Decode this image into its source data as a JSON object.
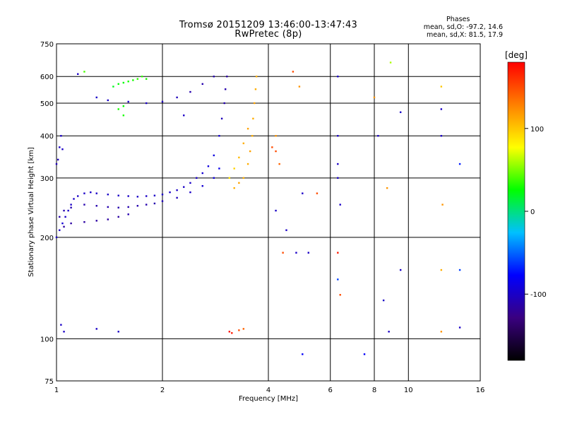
{
  "header": {
    "title_line1": "Tromsø 20151209 13:46:00-13:47:43",
    "title_line2": "RwPretec (8p)"
  },
  "stats": {
    "heading": "Phases",
    "line_o": "mean, sd,O: -97.2, 14.6",
    "line_x": "mean, sd,X:  81.5, 17.9"
  },
  "chart_data": {
    "type": "scatter",
    "xlabel": "Frequency [MHz]",
    "ylabel": "Stationary phase Virtual Height [km]",
    "x_scale": "log",
    "y_scale": "log",
    "xlim": [
      1,
      16
    ],
    "ylim": [
      75,
      750
    ],
    "x_ticks": [
      1,
      2,
      4,
      6,
      8,
      10,
      16
    ],
    "y_ticks": [
      75,
      100,
      200,
      300,
      400,
      500,
      600,
      750
    ],
    "grid": true,
    "colorbar": {
      "label": "[deg]",
      "range": [
        -180,
        180
      ],
      "ticks": [
        100,
        0,
        -100
      ],
      "colors": [
        "#000000",
        "#3a0080",
        "#0000ff",
        "#00c0ff",
        "#00ff00",
        "#ffff00",
        "#ff8000",
        "#ff0000"
      ]
    },
    "points": [
      [
        1.0,
        200,
        -100
      ],
      [
        1.02,
        210,
        -100
      ],
      [
        1.04,
        220,
        -95
      ],
      [
        1.06,
        230,
        -100
      ],
      [
        1.08,
        240,
        -100
      ],
      [
        1.1,
        250,
        -100
      ],
      [
        1.12,
        260,
        -100
      ],
      [
        1.15,
        265,
        -100
      ],
      [
        1.2,
        270,
        -100
      ],
      [
        1.25,
        272,
        -100
      ],
      [
        1.3,
        270,
        -100
      ],
      [
        1.4,
        268,
        -100
      ],
      [
        1.5,
        266,
        -100
      ],
      [
        1.6,
        265,
        -100
      ],
      [
        1.7,
        264,
        -100
      ],
      [
        1.8,
        265,
        -100
      ],
      [
        1.9,
        266,
        -100
      ],
      [
        2.0,
        268,
        -100
      ],
      [
        2.1,
        272,
        -100
      ],
      [
        2.2,
        276,
        -100
      ],
      [
        2.3,
        282,
        -100
      ],
      [
        2.4,
        290,
        -100
      ],
      [
        2.5,
        300,
        -100
      ],
      [
        2.6,
        310,
        -95
      ],
      [
        2.7,
        325,
        -90
      ],
      [
        2.8,
        350,
        -90
      ],
      [
        2.9,
        400,
        -95
      ],
      [
        2.95,
        450,
        -105
      ],
      [
        3.0,
        500,
        -110
      ],
      [
        3.02,
        550,
        -110
      ],
      [
        3.05,
        600,
        -115
      ],
      [
        1.02,
        230,
        -110
      ],
      [
        1.05,
        240,
        -110
      ],
      [
        1.1,
        245,
        -110
      ],
      [
        1.2,
        250,
        -110
      ],
      [
        1.3,
        248,
        -110
      ],
      [
        1.4,
        246,
        -110
      ],
      [
        1.5,
        245,
        -110
      ],
      [
        1.6,
        246,
        -110
      ],
      [
        1.7,
        248,
        -110
      ],
      [
        1.8,
        250,
        -110
      ],
      [
        1.9,
        252,
        -110
      ],
      [
        2.0,
        256,
        -105
      ],
      [
        2.2,
        262,
        -105
      ],
      [
        2.4,
        272,
        -100
      ],
      [
        2.6,
        284,
        -95
      ],
      [
        2.8,
        300,
        -90
      ],
      [
        2.9,
        320,
        -85
      ],
      [
        1.05,
        215,
        -115
      ],
      [
        1.1,
        220,
        -115
      ],
      [
        1.2,
        222,
        -115
      ],
      [
        1.3,
        224,
        -115
      ],
      [
        1.4,
        226,
        -115
      ],
      [
        1.5,
        230,
        -115
      ],
      [
        1.6,
        234,
        -110
      ],
      [
        1.0,
        330,
        -105
      ],
      [
        1.01,
        340,
        -105
      ],
      [
        1.02,
        370,
        -100
      ],
      [
        1.03,
        400,
        -100
      ],
      [
        1.04,
        365,
        -100
      ],
      [
        1.15,
        610,
        -100
      ],
      [
        1.3,
        520,
        -100
      ],
      [
        1.4,
        510,
        -100
      ],
      [
        1.6,
        505,
        -100
      ],
      [
        1.8,
        500,
        -100
      ],
      [
        2.0,
        505,
        -105
      ],
      [
        2.2,
        520,
        -105
      ],
      [
        2.4,
        540,
        -110
      ],
      [
        2.6,
        570,
        -110
      ],
      [
        2.8,
        600,
        -110
      ],
      [
        1.45,
        560,
        20
      ],
      [
        1.5,
        570,
        25
      ],
      [
        1.55,
        575,
        25
      ],
      [
        1.6,
        580,
        30
      ],
      [
        1.65,
        585,
        30
      ],
      [
        1.7,
        590,
        35
      ],
      [
        1.75,
        600,
        35
      ],
      [
        1.8,
        590,
        30
      ],
      [
        1.5,
        480,
        30
      ],
      [
        1.55,
        490,
        25
      ],
      [
        3.2,
        280,
        110
      ],
      [
        3.3,
        290,
        115
      ],
      [
        3.4,
        300,
        110
      ],
      [
        3.5,
        330,
        110
      ],
      [
        3.55,
        360,
        115
      ],
      [
        3.6,
        400,
        110
      ],
      [
        3.62,
        450,
        110
      ],
      [
        3.65,
        500,
        115
      ],
      [
        3.68,
        550,
        110
      ],
      [
        3.7,
        600,
        110
      ],
      [
        3.1,
        300,
        90
      ],
      [
        3.2,
        320,
        95
      ],
      [
        3.3,
        345,
        105
      ],
      [
        3.4,
        380,
        110
      ],
      [
        3.5,
        420,
        115
      ],
      [
        4.1,
        370,
        150
      ],
      [
        4.2,
        360,
        150
      ],
      [
        4.3,
        330,
        140
      ],
      [
        4.2,
        400,
        120
      ],
      [
        3.1,
        105,
        175
      ],
      [
        3.15,
        104,
        170
      ],
      [
        3.3,
        106,
        150
      ],
      [
        3.4,
        107,
        140
      ],
      [
        1.03,
        110,
        -100
      ],
      [
        1.05,
        105,
        -100
      ],
      [
        1.3,
        107,
        -100
      ],
      [
        1.5,
        105,
        -100
      ],
      [
        4.4,
        180,
        150
      ],
      [
        4.5,
        210,
        -100
      ],
      [
        4.8,
        180,
        -100
      ],
      [
        5.0,
        90,
        -80
      ],
      [
        5.2,
        180,
        -100
      ],
      [
        5.0,
        270,
        -100
      ],
      [
        6.3,
        600,
        -100
      ],
      [
        6.3,
        400,
        -100
      ],
      [
        6.3,
        330,
        -100
      ],
      [
        6.3,
        300,
        -100
      ],
      [
        6.4,
        250,
        -100
      ],
      [
        6.3,
        180,
        170
      ],
      [
        6.3,
        150,
        -60
      ],
      [
        6.4,
        135,
        150
      ],
      [
        7.5,
        90,
        -80
      ],
      [
        8.0,
        520,
        120
      ],
      [
        8.2,
        400,
        -100
      ],
      [
        8.5,
        130,
        -100
      ],
      [
        8.7,
        280,
        120
      ],
      [
        8.8,
        105,
        -100
      ],
      [
        8.9,
        660,
        60
      ],
      [
        9.5,
        160,
        -100
      ],
      [
        9.5,
        470,
        -100
      ],
      [
        12.4,
        560,
        100
      ],
      [
        12.4,
        480,
        -100
      ],
      [
        12.4,
        400,
        -100
      ],
      [
        12.5,
        250,
        120
      ],
      [
        12.4,
        160,
        110
      ],
      [
        12.4,
        105,
        120
      ],
      [
        14.0,
        160,
        -60
      ],
      [
        14.0,
        330,
        -70
      ],
      [
        14.0,
        108,
        -100
      ],
      [
        1.2,
        620,
        40
      ],
      [
        1.55,
        460,
        30
      ],
      [
        2.3,
        460,
        -100
      ],
      [
        4.2,
        240,
        -100
      ],
      [
        4.7,
        620,
        150
      ],
      [
        4.9,
        560,
        120
      ],
      [
        5.5,
        270,
        150
      ]
    ]
  }
}
